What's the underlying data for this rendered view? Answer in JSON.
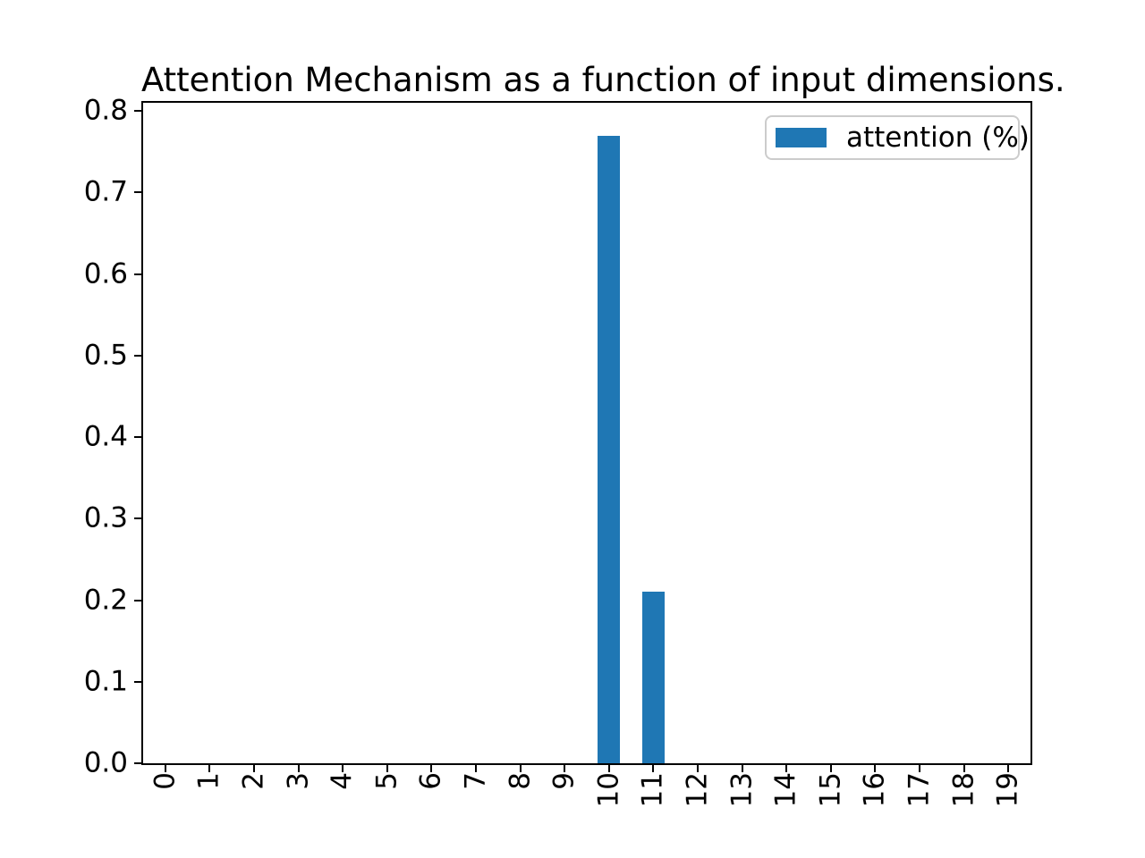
{
  "chart_data": {
    "type": "bar",
    "title": "Attention Mechanism as a function of input dimensions.",
    "categories": [
      "0",
      "1",
      "2",
      "3",
      "4",
      "5",
      "6",
      "7",
      "8",
      "9",
      "10",
      "11",
      "12",
      "13",
      "14",
      "15",
      "16",
      "17",
      "18",
      "19"
    ],
    "values": [
      0,
      0,
      0,
      0,
      0,
      0,
      0,
      0,
      0,
      0,
      0.77,
      0.21,
      0,
      0,
      0,
      0,
      0,
      0,
      0,
      0
    ],
    "series_name": "attention (%)",
    "xlabel": "",
    "ylabel": "",
    "ylim": [
      0.0,
      0.81
    ],
    "yticks": [
      "0.0",
      "0.1",
      "0.2",
      "0.3",
      "0.4",
      "0.5",
      "0.6",
      "0.7",
      "0.8"
    ],
    "xtick_rotation": 90,
    "grid": false,
    "bar_width_fraction": 0.5,
    "legend": {
      "label": "attention (%)",
      "position": "upper right"
    },
    "colors": {
      "bar": "#1f77b4",
      "axis": "#000000",
      "legend_border": "#cccccc",
      "background": "#ffffff"
    }
  }
}
